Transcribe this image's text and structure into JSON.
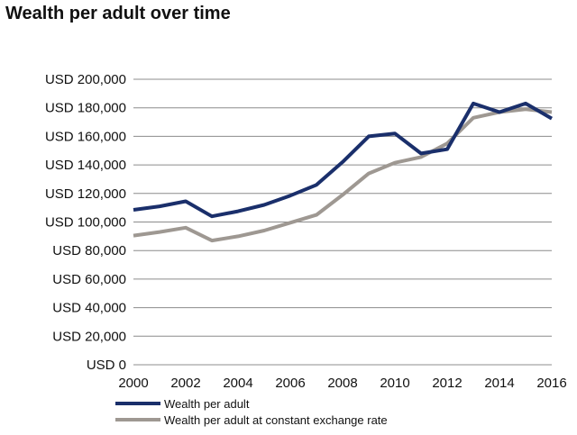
{
  "chart_data": {
    "type": "line",
    "title": "Wealth per adult over time",
    "xlabel": "",
    "ylabel": "",
    "x": [
      2000,
      2001,
      2002,
      2003,
      2004,
      2005,
      2006,
      2007,
      2008,
      2009,
      2010,
      2011,
      2012,
      2013,
      2014,
      2015,
      2016
    ],
    "xticks": [
      "2000",
      "2002",
      "2004",
      "2006",
      "2008",
      "2010",
      "2012",
      "2014",
      "2016"
    ],
    "xlim": [
      2000,
      2016
    ],
    "ylim": [
      0,
      200000
    ],
    "yticks": [
      "USD 0",
      "USD 20,000",
      "USD 40,000",
      "USD 60,000",
      "USD 80,000",
      "USD 100,000",
      "USD 120,000",
      "USD 140,000",
      "USD 160,000",
      "USD 180,000",
      "USD 200,000"
    ],
    "grid": "horizontal",
    "legend_position": "bottom-left",
    "series": [
      {
        "name": "Wealth per adult",
        "color": "#1a2f6b",
        "values": [
          108500,
          111000,
          114500,
          104000,
          107500,
          112000,
          118500,
          126000,
          142000,
          160000,
          162000,
          148000,
          151000,
          183000,
          177000,
          183000,
          172500
        ]
      },
      {
        "name": "Wealth per adult at constant exchange rate",
        "color": "#9e9892",
        "values": [
          90500,
          93000,
          96000,
          87000,
          90000,
          94000,
          99500,
          105000,
          119000,
          134000,
          141500,
          145500,
          155000,
          173000,
          177000,
          179000,
          177000
        ]
      }
    ]
  }
}
